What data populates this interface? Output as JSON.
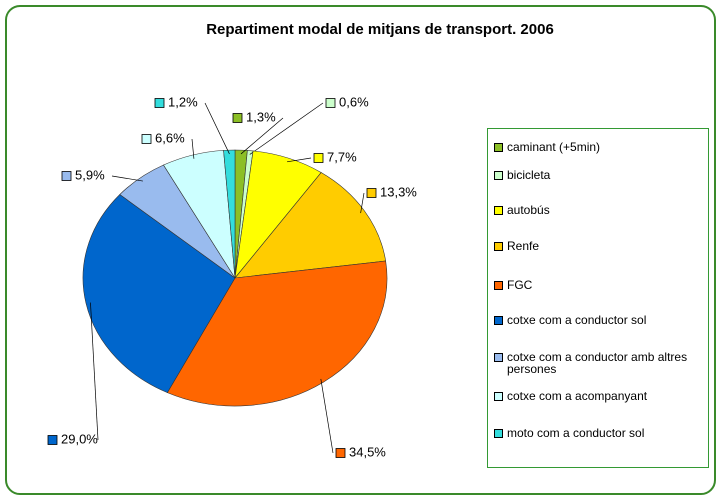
{
  "chart_data": {
    "type": "pie",
    "title": "Repartiment modal de mitjans de transport. 2006",
    "categories": [
      "caminant (+5min)",
      "bicicleta",
      "autobús",
      "Renfe",
      "FGC",
      "cotxe com a conductor sol",
      "cotxe com a conductor amb altres persones",
      "cotxe com a acompanyant",
      "moto com a conductor sol"
    ],
    "values": [
      1.3,
      0.6,
      7.7,
      13.3,
      34.5,
      29.0,
      5.9,
      6.6,
      1.2
    ],
    "value_labels": [
      "1,3%",
      "0,6%",
      "7,7%",
      "13,3%",
      "34,5%",
      "29,0%",
      "5,9%",
      "6,6%",
      "1,2%"
    ],
    "colors": [
      "#8cbf26",
      "#ccffcc",
      "#ffff00",
      "#ffcc00",
      "#ff6600",
      "#0066cc",
      "#99bbee",
      "#ccffff",
      "#33dddd"
    ],
    "legend": "right"
  }
}
